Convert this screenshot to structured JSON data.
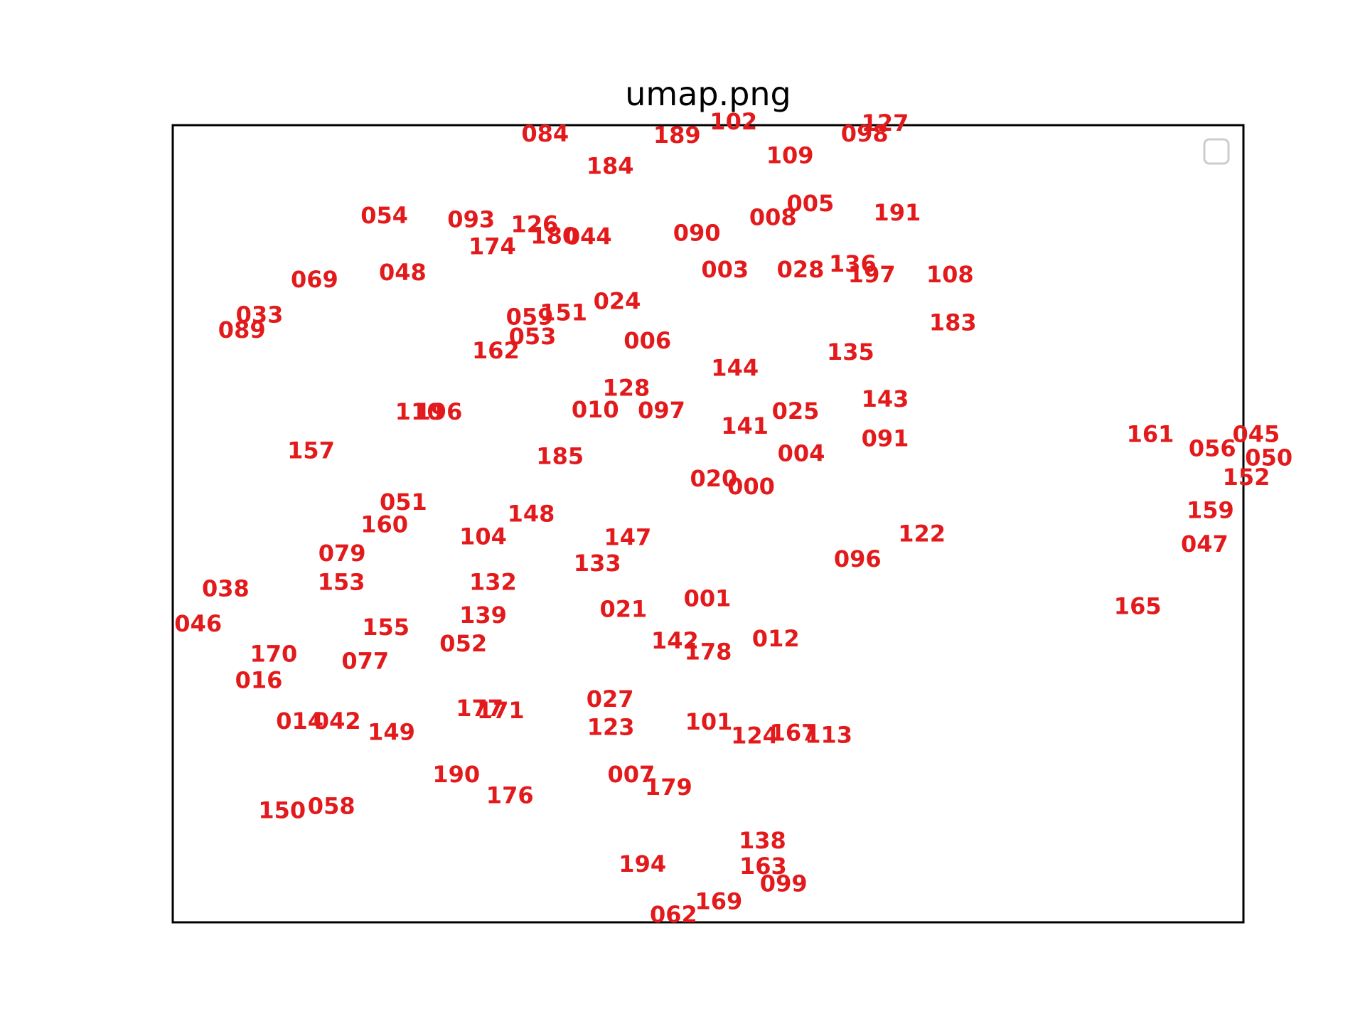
{
  "chart_data": {
    "type": "scatter",
    "title": "umap.png",
    "xlabel": "",
    "ylabel": "",
    "grid": false,
    "legend": "top-right",
    "legend_entries": [],
    "axis_ticks": false,
    "mark": "text-label",
    "color": "#e31a1c",
    "xlim": [
      0,
      15.18
    ],
    "ylim": [
      0,
      11.32
    ],
    "points": [
      {
        "label": "084",
        "x": 5.28,
        "y": 11.2
      },
      {
        "label": "189",
        "x": 7.15,
        "y": 11.18
      },
      {
        "label": "102",
        "x": 7.95,
        "y": 11.37
      },
      {
        "label": "127",
        "x": 10.1,
        "y": 11.35
      },
      {
        "label": "098",
        "x": 9.81,
        "y": 11.2
      },
      {
        "label": "184",
        "x": 6.2,
        "y": 10.74
      },
      {
        "label": "109",
        "x": 8.75,
        "y": 10.89
      },
      {
        "label": "054",
        "x": 3.0,
        "y": 10.04
      },
      {
        "label": "093",
        "x": 4.23,
        "y": 9.98
      },
      {
        "label": "126",
        "x": 5.13,
        "y": 9.91
      },
      {
        "label": "180",
        "x": 5.41,
        "y": 9.75
      },
      {
        "label": "044",
        "x": 5.89,
        "y": 9.74
      },
      {
        "label": "174",
        "x": 4.53,
        "y": 9.6
      },
      {
        "label": "090",
        "x": 7.43,
        "y": 9.79
      },
      {
        "label": "008",
        "x": 8.51,
        "y": 10.01
      },
      {
        "label": "005",
        "x": 9.04,
        "y": 10.21
      },
      {
        "label": "191",
        "x": 10.27,
        "y": 10.08
      },
      {
        "label": "069",
        "x": 2.01,
        "y": 9.13
      },
      {
        "label": "048",
        "x": 3.26,
        "y": 9.23
      },
      {
        "label": "003",
        "x": 7.83,
        "y": 9.27
      },
      {
        "label": "028",
        "x": 8.9,
        "y": 9.27
      },
      {
        "label": "136",
        "x": 9.64,
        "y": 9.35
      },
      {
        "label": "197",
        "x": 9.91,
        "y": 9.2
      },
      {
        "label": "108",
        "x": 11.02,
        "y": 9.2
      },
      {
        "label": "033",
        "x": 1.23,
        "y": 8.63
      },
      {
        "label": "089",
        "x": 0.98,
        "y": 8.41
      },
      {
        "label": "059",
        "x": 5.06,
        "y": 8.6
      },
      {
        "label": "151",
        "x": 5.54,
        "y": 8.66
      },
      {
        "label": "024",
        "x": 6.3,
        "y": 8.82
      },
      {
        "label": "053",
        "x": 5.1,
        "y": 8.32
      },
      {
        "label": "162",
        "x": 4.58,
        "y": 8.12
      },
      {
        "label": "006",
        "x": 6.73,
        "y": 8.26
      },
      {
        "label": "183",
        "x": 11.06,
        "y": 8.52
      },
      {
        "label": "135",
        "x": 9.61,
        "y": 8.1
      },
      {
        "label": "144",
        "x": 7.97,
        "y": 7.87
      },
      {
        "label": "128",
        "x": 6.43,
        "y": 7.59
      },
      {
        "label": "110",
        "x": 3.49,
        "y": 7.25
      },
      {
        "label": "196",
        "x": 3.77,
        "y": 7.25
      },
      {
        "label": "010",
        "x": 5.99,
        "y": 7.28
      },
      {
        "label": "097",
        "x": 6.93,
        "y": 7.27
      },
      {
        "label": "141",
        "x": 8.11,
        "y": 7.05
      },
      {
        "label": "025",
        "x": 8.83,
        "y": 7.26
      },
      {
        "label": "143",
        "x": 10.1,
        "y": 7.43
      },
      {
        "label": "091",
        "x": 10.1,
        "y": 6.87
      },
      {
        "label": "161",
        "x": 13.86,
        "y": 6.93
      },
      {
        "label": "045",
        "x": 15.36,
        "y": 6.93
      },
      {
        "label": "056",
        "x": 14.74,
        "y": 6.73
      },
      {
        "label": "050",
        "x": 15.54,
        "y": 6.6
      },
      {
        "label": "152",
        "x": 15.22,
        "y": 6.32
      },
      {
        "label": "157",
        "x": 1.96,
        "y": 6.7
      },
      {
        "label": "185",
        "x": 5.49,
        "y": 6.62
      },
      {
        "label": "004",
        "x": 8.91,
        "y": 6.66
      },
      {
        "label": "020",
        "x": 7.67,
        "y": 6.3
      },
      {
        "label": "000",
        "x": 8.2,
        "y": 6.19
      },
      {
        "label": "051",
        "x": 3.27,
        "y": 5.97
      },
      {
        "label": "160",
        "x": 3.0,
        "y": 5.65
      },
      {
        "label": "148",
        "x": 5.08,
        "y": 5.8
      },
      {
        "label": "104",
        "x": 4.4,
        "y": 5.48
      },
      {
        "label": "147",
        "x": 6.45,
        "y": 5.47
      },
      {
        "label": "122",
        "x": 10.62,
        "y": 5.52
      },
      {
        "label": "159",
        "x": 14.71,
        "y": 5.85
      },
      {
        "label": "047",
        "x": 14.63,
        "y": 5.37
      },
      {
        "label": "079",
        "x": 2.4,
        "y": 5.24
      },
      {
        "label": "133",
        "x": 6.02,
        "y": 5.1
      },
      {
        "label": "096",
        "x": 9.71,
        "y": 5.16
      },
      {
        "label": "038",
        "x": 0.75,
        "y": 4.74
      },
      {
        "label": "153",
        "x": 2.39,
        "y": 4.83
      },
      {
        "label": "132",
        "x": 4.54,
        "y": 4.83
      },
      {
        "label": "165",
        "x": 13.68,
        "y": 4.49
      },
      {
        "label": "021",
        "x": 6.39,
        "y": 4.45
      },
      {
        "label": "001",
        "x": 7.58,
        "y": 4.6
      },
      {
        "label": "046",
        "x": 0.36,
        "y": 4.24
      },
      {
        "label": "155",
        "x": 3.02,
        "y": 4.19
      },
      {
        "label": "139",
        "x": 4.4,
        "y": 4.36
      },
      {
        "label": "052",
        "x": 4.12,
        "y": 3.96
      },
      {
        "label": "142",
        "x": 7.12,
        "y": 4.0
      },
      {
        "label": "178",
        "x": 7.59,
        "y": 3.84
      },
      {
        "label": "012",
        "x": 8.55,
        "y": 4.03
      },
      {
        "label": "170",
        "x": 1.43,
        "y": 3.81
      },
      {
        "label": "077",
        "x": 2.73,
        "y": 3.71
      },
      {
        "label": "016",
        "x": 1.22,
        "y": 3.44
      },
      {
        "label": "027",
        "x": 6.2,
        "y": 3.17
      },
      {
        "label": "177",
        "x": 4.35,
        "y": 3.04
      },
      {
        "label": "171",
        "x": 4.65,
        "y": 3.01
      },
      {
        "label": "014",
        "x": 1.8,
        "y": 2.86
      },
      {
        "label": "042",
        "x": 2.33,
        "y": 2.86
      },
      {
        "label": "149",
        "x": 3.1,
        "y": 2.7
      },
      {
        "label": "123",
        "x": 6.21,
        "y": 2.77
      },
      {
        "label": "101",
        "x": 7.6,
        "y": 2.85
      },
      {
        "label": "124",
        "x": 8.25,
        "y": 2.65
      },
      {
        "label": "167",
        "x": 8.8,
        "y": 2.69
      },
      {
        "label": "113",
        "x": 9.3,
        "y": 2.66
      },
      {
        "label": "190",
        "x": 4.02,
        "y": 2.1
      },
      {
        "label": "007",
        "x": 6.5,
        "y": 2.1
      },
      {
        "label": "176",
        "x": 4.78,
        "y": 1.8
      },
      {
        "label": "179",
        "x": 7.03,
        "y": 1.92
      },
      {
        "label": "150",
        "x": 1.55,
        "y": 1.59
      },
      {
        "label": "058",
        "x": 2.25,
        "y": 1.65
      },
      {
        "label": "138",
        "x": 8.36,
        "y": 1.16
      },
      {
        "label": "194",
        "x": 6.66,
        "y": 0.83
      },
      {
        "label": "163",
        "x": 8.37,
        "y": 0.8
      },
      {
        "label": "099",
        "x": 8.66,
        "y": 0.55
      },
      {
        "label": "169",
        "x": 7.74,
        "y": 0.3
      },
      {
        "label": "062",
        "x": 7.1,
        "y": 0.11
      }
    ]
  }
}
